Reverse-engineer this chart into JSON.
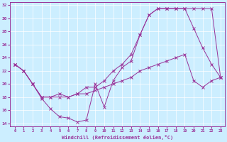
{
  "xlabel": "Windchill (Refroidissement éolien,°C)",
  "xlim": [
    0,
    23
  ],
  "ylim": [
    13.5,
    32.5
  ],
  "yticks": [
    14,
    16,
    18,
    20,
    22,
    24,
    26,
    28,
    30,
    32
  ],
  "xticks": [
    0,
    1,
    2,
    3,
    4,
    5,
    6,
    7,
    8,
    9,
    10,
    11,
    12,
    13,
    14,
    15,
    16,
    17,
    18,
    19,
    20,
    21,
    22,
    23
  ],
  "background_color": "#cceeff",
  "grid_color": "#ffffff",
  "line_color": "#993399",
  "line1_x": [
    0,
    1,
    2,
    3,
    4,
    5,
    6,
    7,
    8,
    9,
    10,
    11,
    12,
    13,
    14,
    15,
    16,
    17,
    18,
    19,
    20,
    21,
    22,
    23
  ],
  "line1_y": [
    23.0,
    22.0,
    20.0,
    17.8,
    16.2,
    15.0,
    14.8,
    14.2,
    14.5,
    20.0,
    16.5,
    20.5,
    22.5,
    23.5,
    27.5,
    30.5,
    31.5,
    31.5,
    31.5,
    31.5,
    28.5,
    25.5,
    23.0,
    21.0
  ],
  "line2_x": [
    0,
    1,
    2,
    3,
    4,
    5,
    6,
    7,
    8,
    9,
    10,
    11,
    12,
    13,
    14,
    15,
    16,
    17,
    18,
    19,
    20,
    21,
    22,
    23
  ],
  "line2_y": [
    23.0,
    22.0,
    20.0,
    18.0,
    18.0,
    18.0,
    18.0,
    18.5,
    18.5,
    19.0,
    19.5,
    20.0,
    20.5,
    21.0,
    22.0,
    22.5,
    23.0,
    23.5,
    24.0,
    24.5,
    20.5,
    19.5,
    20.5,
    21.0
  ],
  "line3_x": [
    0,
    1,
    2,
    3,
    4,
    5,
    6,
    7,
    8,
    9,
    10,
    11,
    12,
    13,
    14,
    15,
    16,
    17,
    18,
    19,
    20,
    21,
    22,
    23
  ],
  "line3_y": [
    23.0,
    22.0,
    20.0,
    18.0,
    18.0,
    18.5,
    18.0,
    18.5,
    19.5,
    19.5,
    20.5,
    22.0,
    23.0,
    24.5,
    27.5,
    30.5,
    31.5,
    31.5,
    31.5,
    31.5,
    31.5,
    31.5,
    31.5,
    21.0
  ]
}
